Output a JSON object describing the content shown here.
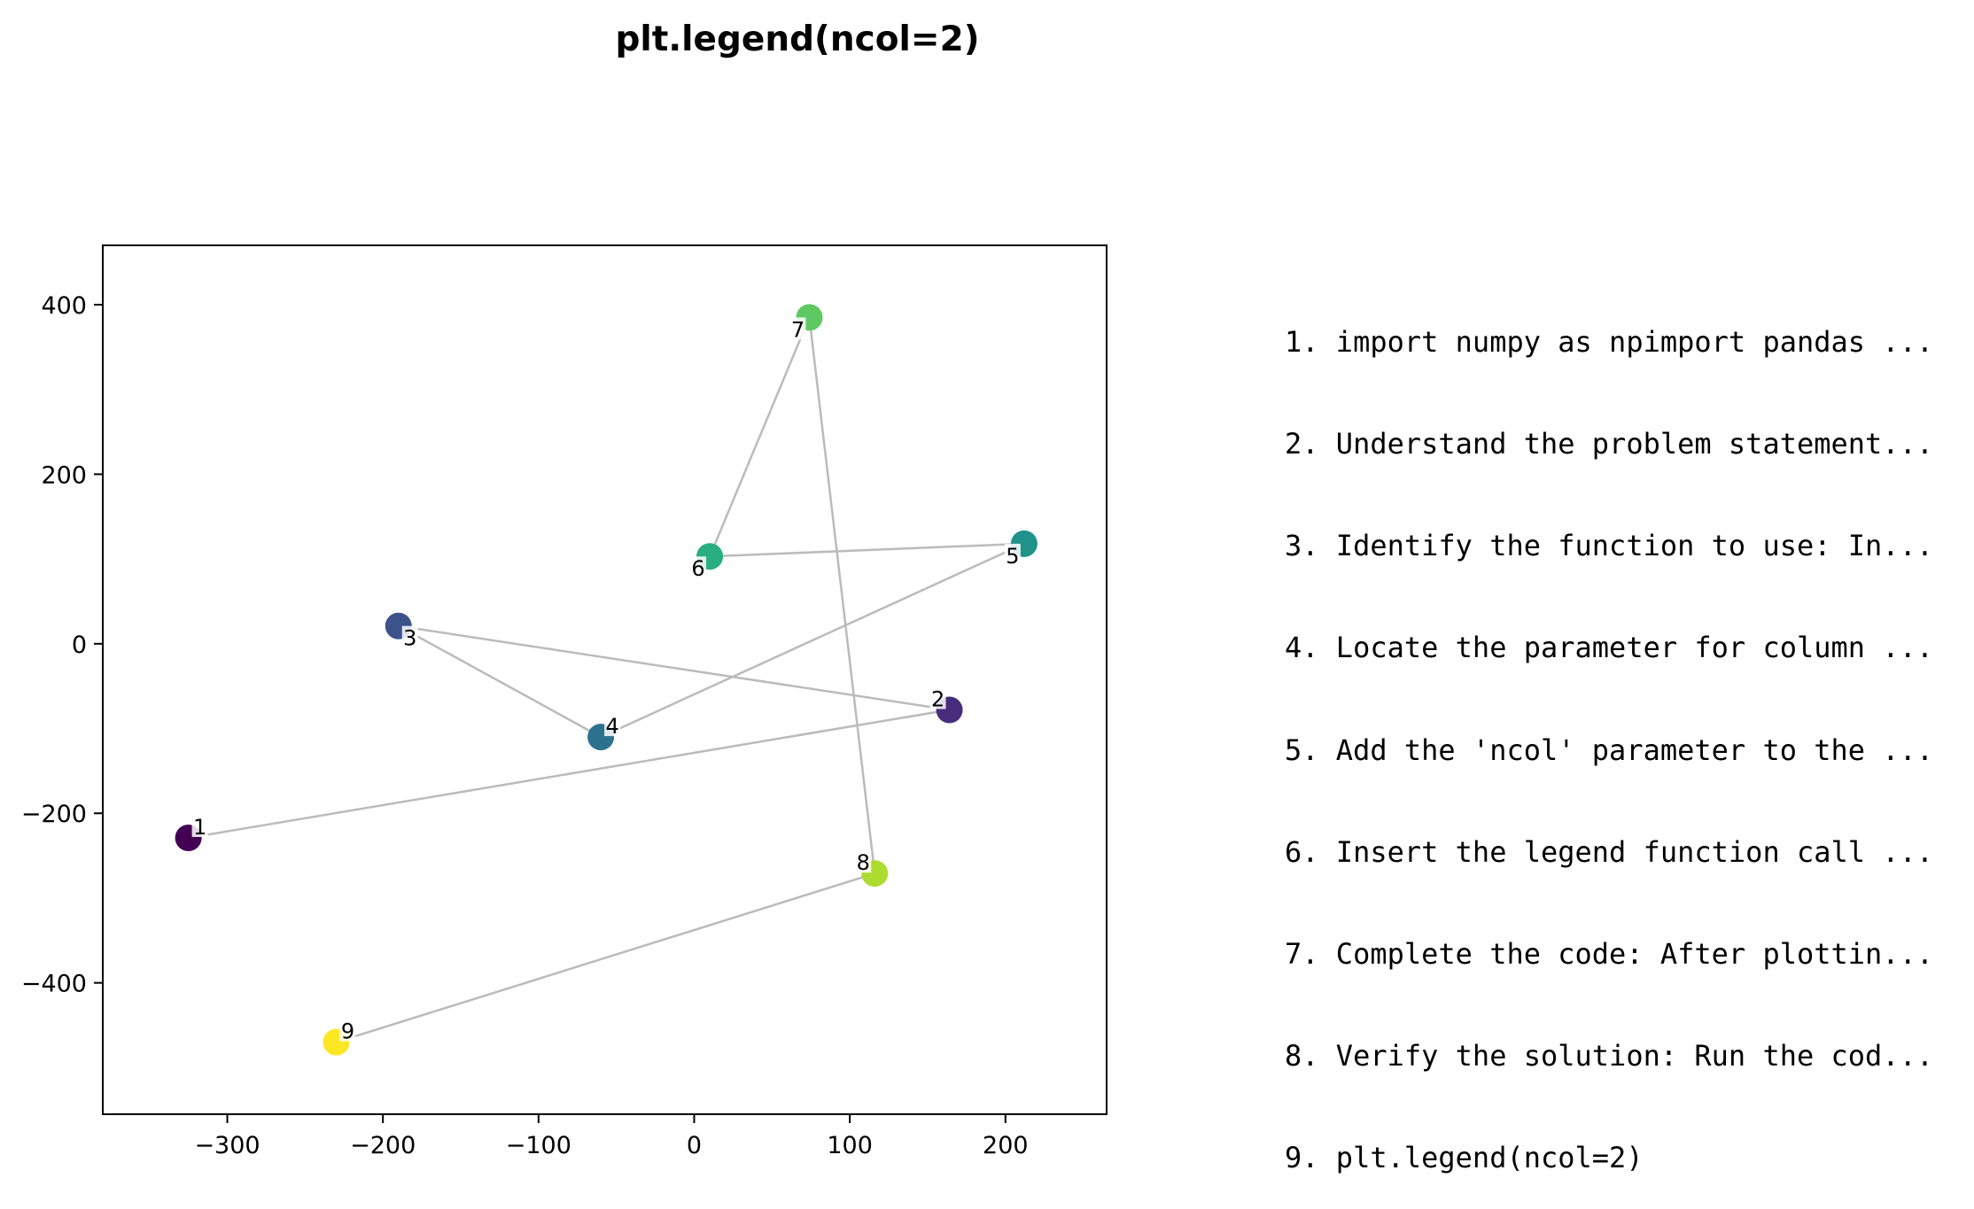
{
  "chart_data": {
    "type": "scatter",
    "title": "plt.legend(ncol=2)",
    "xlabel": "",
    "ylabel": "",
    "xlim": [
      -380,
      265
    ],
    "ylim": [
      -555,
      470
    ],
    "x_ticks": [
      -300,
      -200,
      -100,
      0,
      100,
      200
    ],
    "y_ticks": [
      -400,
      -200,
      0,
      200,
      400
    ],
    "x_tick_labels": [
      "−300",
      "−200",
      "−100",
      "0",
      "100",
      "200"
    ],
    "y_tick_labels": [
      "−400",
      "−200",
      "0",
      "200",
      "400"
    ],
    "grid": false,
    "connect_points_in_order": true,
    "line_color": "#bbbbbb",
    "colormap": "viridis",
    "points": [
      {
        "label": "1",
        "x": -325,
        "y": -229,
        "color": "#440154"
      },
      {
        "label": "2",
        "x": 164,
        "y": -78,
        "color": "#472d7b"
      },
      {
        "label": "3",
        "x": -190,
        "y": 21,
        "color": "#3b528b"
      },
      {
        "label": "4",
        "x": -60,
        "y": -110,
        "color": "#2c728e"
      },
      {
        "label": "5",
        "x": 212,
        "y": 118,
        "color": "#21918c"
      },
      {
        "label": "6",
        "x": 10,
        "y": 103,
        "color": "#28ae80"
      },
      {
        "label": "7",
        "x": 74,
        "y": 385,
        "color": "#5ec962"
      },
      {
        "label": "8",
        "x": 116,
        "y": -271,
        "color": "#addc30"
      },
      {
        "label": "9",
        "x": -230,
        "y": -470,
        "color": "#fde725"
      }
    ],
    "label_offsets": [
      {
        "dx": 1,
        "dy": -1
      },
      {
        "dx": -1,
        "dy": -1
      },
      {
        "dx": 1,
        "dy": 1
      },
      {
        "dx": 1,
        "dy": -1
      },
      {
        "dx": -1,
        "dy": 1
      },
      {
        "dx": -1,
        "dy": 1
      },
      {
        "dx": -1,
        "dy": 1
      },
      {
        "dx": -1,
        "dy": -1
      },
      {
        "dx": 1,
        "dy": -1
      }
    ],
    "step_list": [
      "1. import numpy as npimport pandas ...",
      "2. Understand the problem statement...",
      "3. Identify the function to use: In...",
      "4. Locate the parameter for column ...",
      "5. Add the 'ncol' parameter to the ...",
      "6. Insert the legend function call ...",
      "7. Complete the code: After plottin...",
      "8. Verify the solution: Run the cod...",
      "9. plt.legend(ncol=2)"
    ]
  }
}
